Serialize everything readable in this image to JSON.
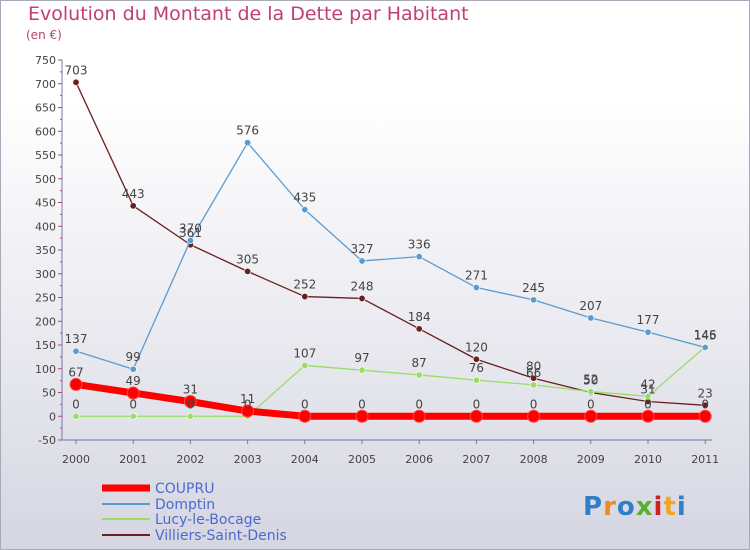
{
  "chart_data": {
    "type": "line",
    "title": "Evolution du Montant de la Dette par Habitant",
    "subtitle": "(en €)",
    "x": [
      "2000",
      "2001",
      "2002",
      "2003",
      "2004",
      "2005",
      "2006",
      "2007",
      "2008",
      "2009",
      "2010",
      "2011"
    ],
    "ylim": [
      -50,
      750
    ],
    "yticks": [
      -50,
      0,
      50,
      100,
      150,
      200,
      250,
      300,
      350,
      400,
      450,
      500,
      550,
      600,
      650,
      700,
      750
    ],
    "grid": false,
    "legend": "bottom-left",
    "series": [
      {
        "name": "COUPRU",
        "color": "#ff0000",
        "values": [
          67,
          49,
          31,
          11,
          0,
          0,
          0,
          0,
          0,
          0,
          0,
          0
        ],
        "labels": [
          "67",
          "49",
          "31",
          "11",
          "0",
          "0",
          "0",
          "0",
          "0",
          "0",
          "0",
          "0"
        ]
      },
      {
        "name": "Domptin",
        "color": "#5b9bd0",
        "values": [
          137,
          99,
          370,
          576,
          435,
          327,
          336,
          271,
          245,
          207,
          177,
          145
        ],
        "labels": [
          "137",
          "99",
          "370",
          "576",
          "435",
          "327",
          "336",
          "271",
          "245",
          "207",
          "177",
          "145"
        ]
      },
      {
        "name": "Lucy-le-Bocage",
        "color": "#99dd66",
        "values": [
          0,
          0,
          0,
          0,
          107,
          97,
          87,
          76,
          66,
          52,
          42,
          146
        ],
        "labels": [
          "0",
          "0",
          "0",
          "0",
          "107",
          "97",
          "87",
          "76",
          "66",
          "52",
          "42",
          "146"
        ]
      },
      {
        "name": "Villiers-Saint-Denis",
        "color": "#6b1e1e",
        "values": [
          703,
          443,
          361,
          305,
          252,
          248,
          184,
          120,
          80,
          50,
          31,
          23
        ],
        "labels": [
          "703",
          "443",
          "361",
          "305",
          "252",
          "248",
          "184",
          "120",
          "80",
          "50",
          "31",
          "23"
        ]
      }
    ]
  },
  "logo": {
    "text": "Proxiti"
  }
}
